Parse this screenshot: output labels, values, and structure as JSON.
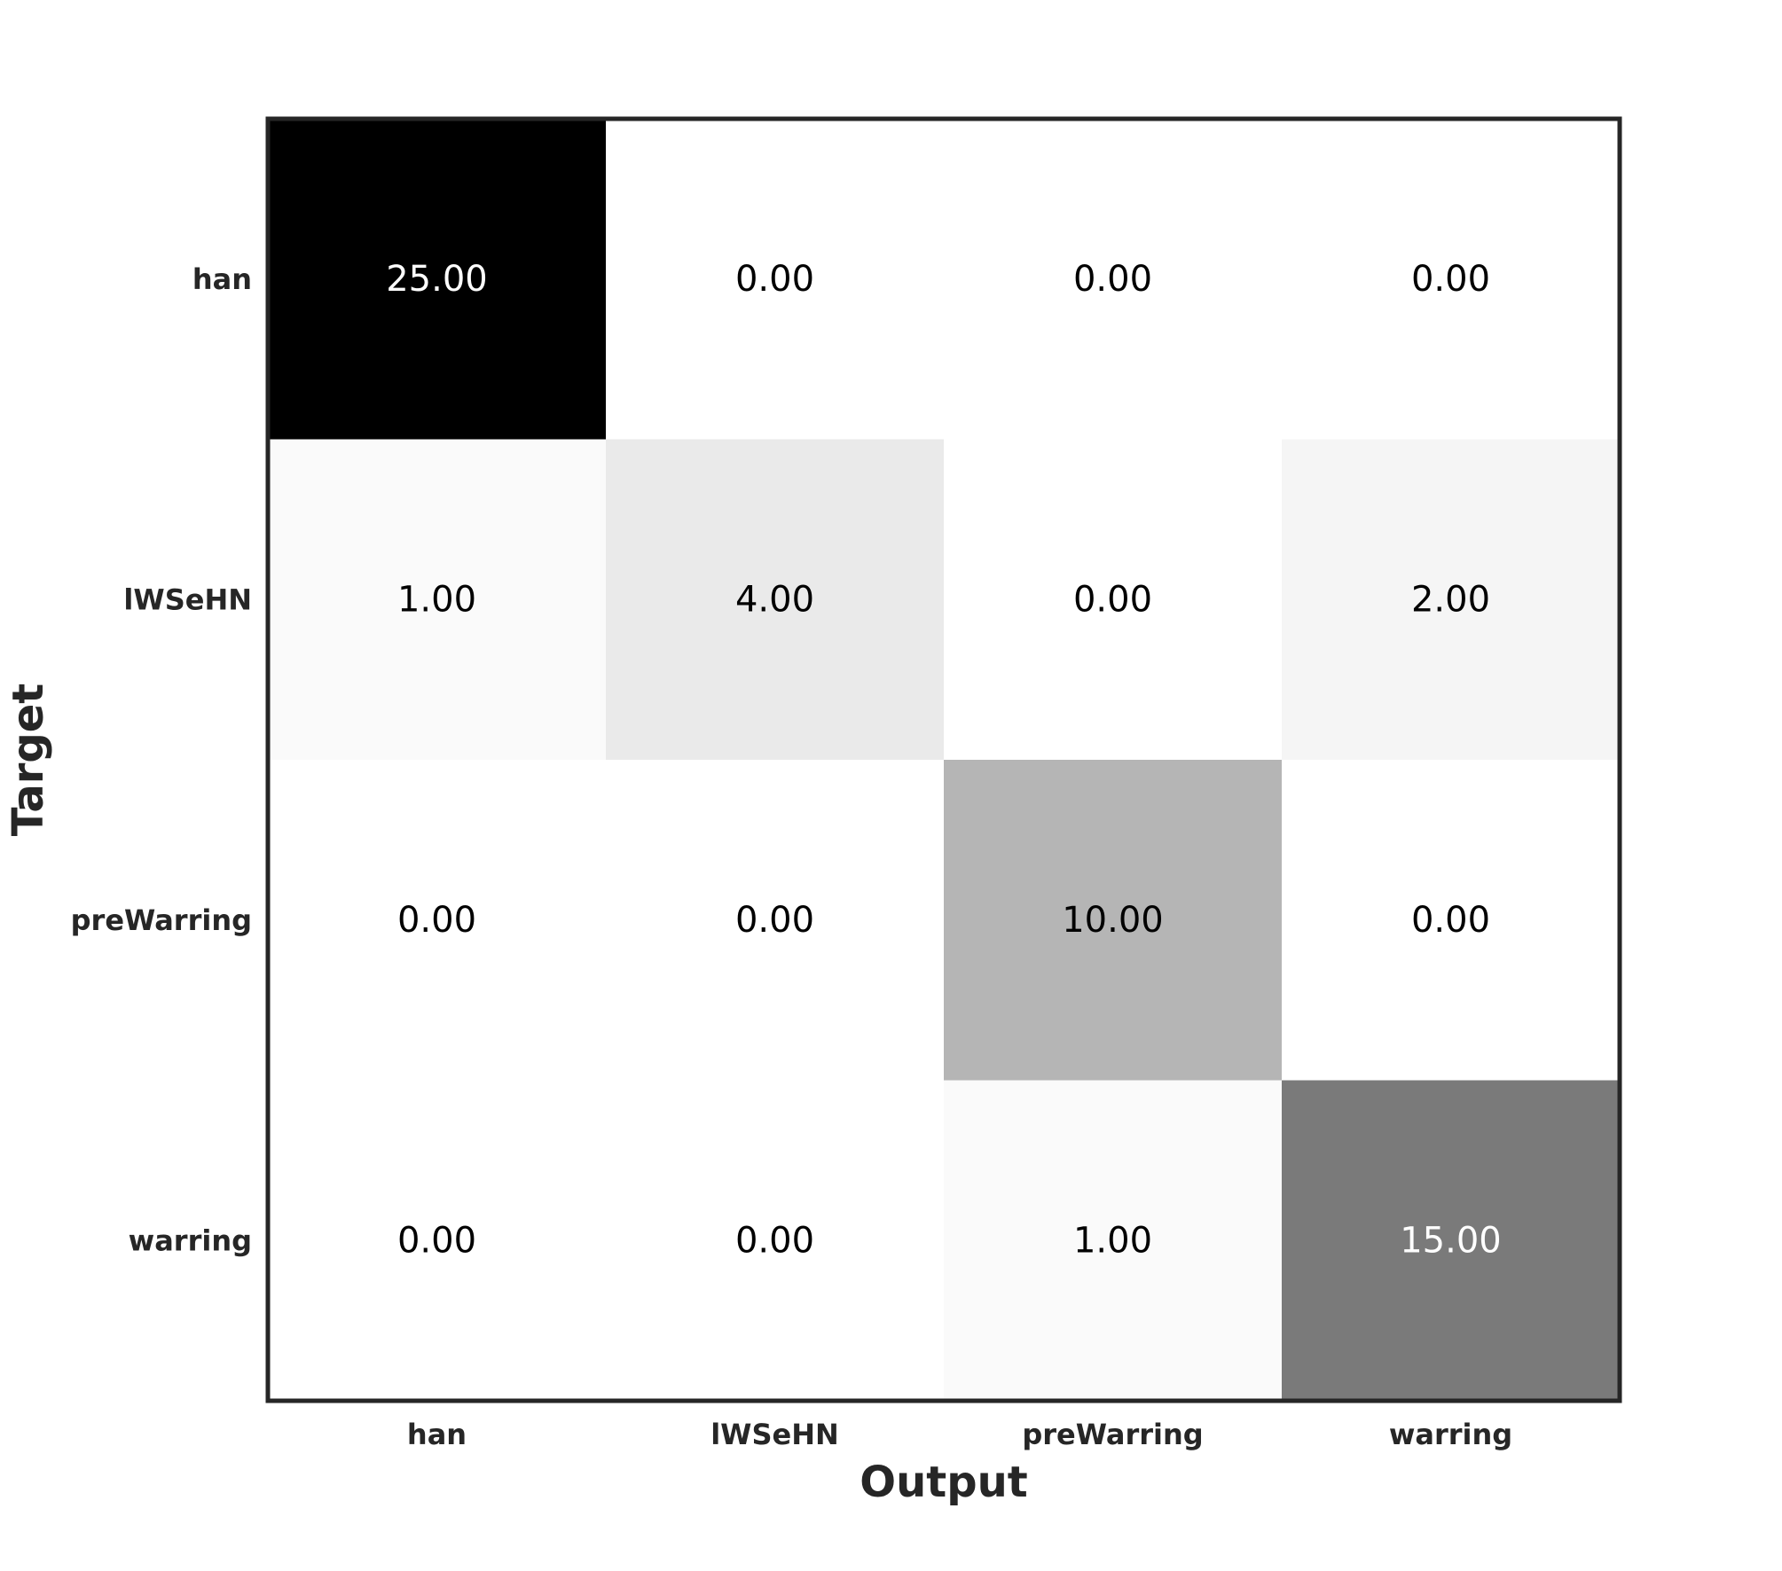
{
  "chart_data": {
    "type": "heatmap",
    "title": "",
    "xlabel": "Output",
    "ylabel": "Target",
    "x_categories": [
      "han",
      "lWSeHN",
      "preWarring",
      "warring"
    ],
    "y_categories": [
      "han",
      "lWSeHN",
      "preWarring",
      "warring"
    ],
    "values": [
      [
        25,
        0,
        0,
        0
      ],
      [
        1,
        4,
        0,
        2
      ],
      [
        0,
        0,
        10,
        0
      ],
      [
        0,
        0,
        1,
        15
      ]
    ],
    "value_labels": [
      [
        "25.00",
        "0.00",
        "0.00",
        "0.00"
      ],
      [
        "1.00",
        "4.00",
        "0.00",
        "2.00"
      ],
      [
        "0.00",
        "0.00",
        "10.00",
        "0.00"
      ],
      [
        "0.00",
        "0.00",
        "1.00",
        "15.00"
      ]
    ],
    "colormap": "greys",
    "vmin": 0,
    "vmax": 25,
    "grid": false,
    "colors": {
      "low": "#ffffff",
      "high": "#000000",
      "frame": "#262626",
      "text_dark": "#000000",
      "text_light": "#ffffff"
    }
  }
}
